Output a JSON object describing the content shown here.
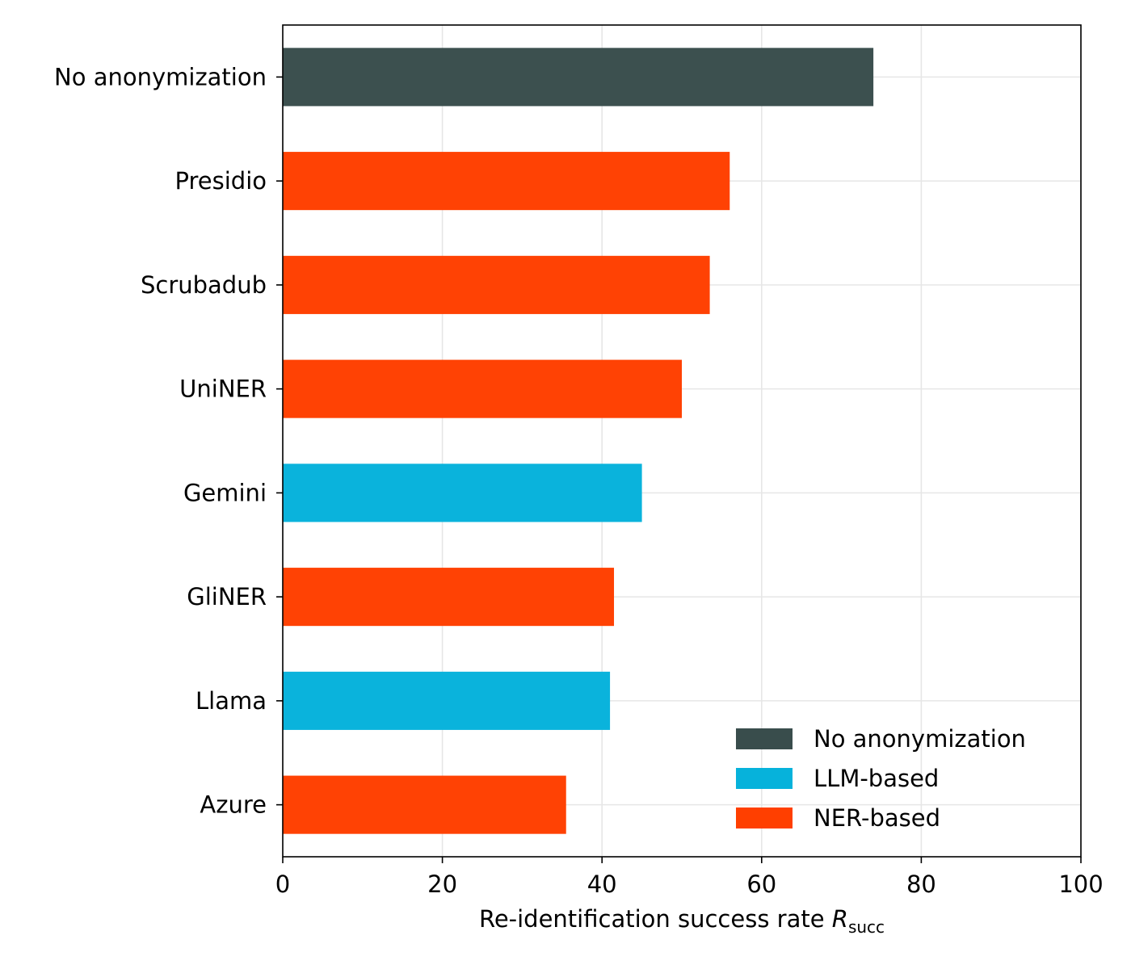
{
  "chart_data": {
    "type": "bar",
    "orientation": "horizontal",
    "categories": [
      "No anonymization",
      "Presidio",
      "Scrubadub",
      "UniNER",
      "Gemini",
      "GliNER",
      "Llama",
      "Azure"
    ],
    "values": [
      74,
      56,
      53.5,
      50,
      45,
      41.5,
      41,
      35.5
    ],
    "groups": [
      "No anonymization",
      "NER-based",
      "NER-based",
      "NER-based",
      "LLM-based",
      "NER-based",
      "LLM-based",
      "NER-based"
    ],
    "xlabel": {
      "text": "Re-identification success rate ",
      "math_base": "R",
      "math_sub": "succ"
    },
    "ylabel": "",
    "xlim": [
      0,
      100
    ],
    "xticks": [
      0,
      20,
      40,
      60,
      80,
      100
    ],
    "grid": true,
    "legend": {
      "placement": "lower-right",
      "entries": [
        {
          "label": "No anonymization",
          "color": "#394d4c"
        },
        {
          "label": "LLM-based",
          "color": "#06b2db"
        },
        {
          "label": "NER-based",
          "color": "#ff3f00"
        }
      ]
    }
  }
}
